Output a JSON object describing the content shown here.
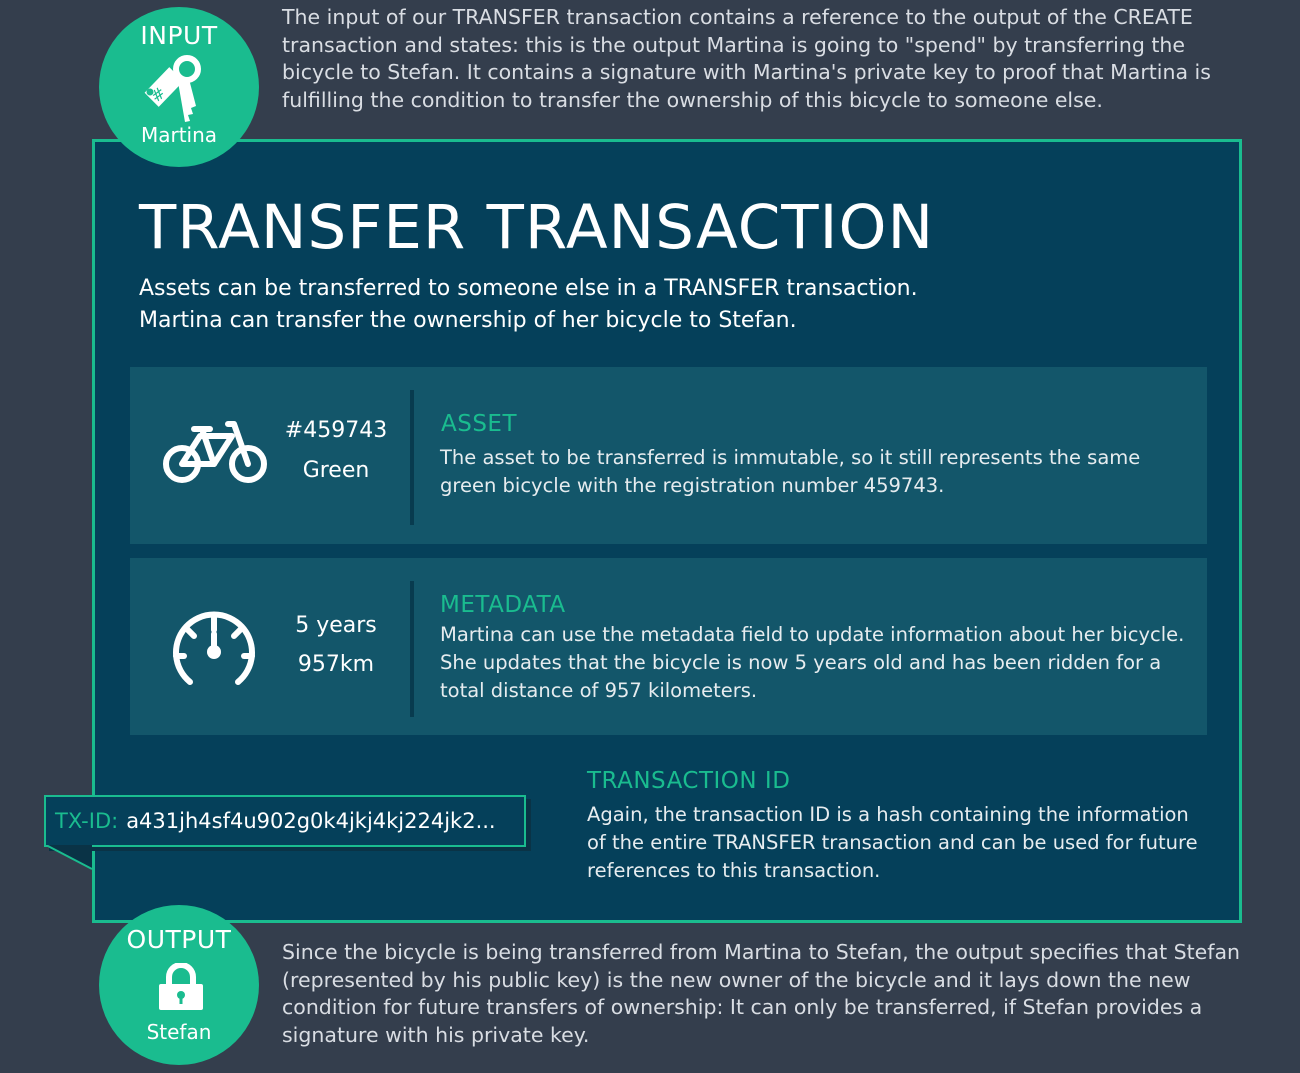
{
  "input": {
    "title": "INPUT",
    "name": "Martina",
    "icon": "key-tag-icon",
    "hash_symbol": "#",
    "text": "The input of our TRANSFER transaction contains a reference to the output of the CREATE transaction and states: this is the output Martina is going to \"spend\" by transferring the bicycle to Stefan. It contains a signature with Martina's private key to proof that Martina is fulfilling the condition to transfer the ownership of this bicycle to someone else."
  },
  "main": {
    "title": "TRANSFER TRANSACTION",
    "intro_lines": [
      "Assets can be transferred to someone else in a TRANSFER transaction.",
      "Martina can transfer the ownership of her bicycle to Stefan."
    ],
    "asset": {
      "icon": "bicycle-icon",
      "values": [
        "#459743",
        "Green"
      ],
      "title": "ASSET",
      "description": "The asset to be transferred is immutable, so it still represents the same green bicycle with the registration number 459743."
    },
    "metadata": {
      "icon": "speedometer-icon",
      "values": [
        "5 years",
        "957km"
      ],
      "title": "METADATA",
      "description": "Martina can use the metadata field to update information about her bicycle. She updates that the bicycle is now 5 years old and has been ridden for a total distance of 957 kilometers."
    },
    "transaction_id": {
      "title": "TRANSACTION ID",
      "description": "Again, the transaction ID is a hash containing the information of the entire TRANSFER transaction and can be used for future references to this transaction.",
      "label": "TX-ID:",
      "value": "a431jh4sf4u902g0k4jkj4kj224jk2..."
    }
  },
  "output": {
    "title": "OUTPUT",
    "name": "Stefan",
    "icon": "padlock-icon",
    "text": "Since the bicycle is being transferred from Martina to Stefan, the output specifies that Stefan (represented by his public key) is the new owner of the bicycle and it lays down the new condition for future transfers of ownership: It can only be transferred, if Stefan provides a signature with his private key."
  },
  "colors": {
    "background": "#343e4d",
    "accent": "#1abc8f",
    "box": "#05405a",
    "panel": "#13566a"
  }
}
